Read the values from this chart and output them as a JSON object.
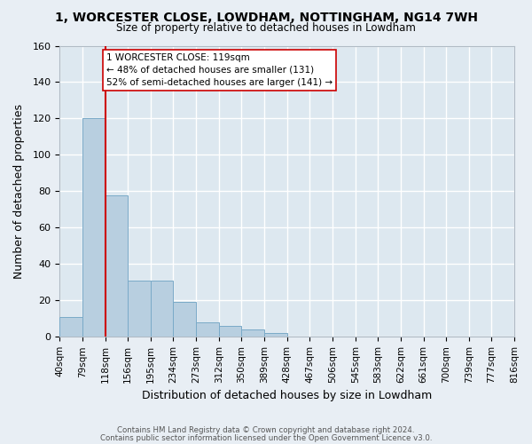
{
  "title": "1, WORCESTER CLOSE, LOWDHAM, NOTTINGHAM, NG14 7WH",
  "subtitle": "Size of property relative to detached houses in Lowdham",
  "xlabel": "Distribution of detached houses by size in Lowdham",
  "ylabel": "Number of detached properties",
  "bar_values": [
    11,
    120,
    78,
    31,
    31,
    19,
    8,
    6,
    4,
    2,
    0,
    0,
    0,
    0,
    0,
    0,
    0,
    0,
    0,
    0
  ],
  "bin_labels": [
    "40sqm",
    "79sqm",
    "118sqm",
    "156sqm",
    "195sqm",
    "234sqm",
    "273sqm",
    "312sqm",
    "350sqm",
    "389sqm",
    "428sqm",
    "467sqm",
    "506sqm",
    "545sqm",
    "583sqm",
    "622sqm",
    "661sqm",
    "700sqm",
    "739sqm",
    "777sqm",
    "816sqm"
  ],
  "bin_edges": [
    40,
    79,
    118,
    156,
    195,
    234,
    273,
    312,
    350,
    389,
    428,
    467,
    506,
    545,
    583,
    622,
    661,
    700,
    739,
    777,
    816
  ],
  "bar_color": "#b8cfe0",
  "bar_edge_color": "#7aaac8",
  "highlight_bin_idx": 2,
  "highlight_line_color": "#cc0000",
  "annotation_line1": "1 WORCESTER CLOSE: 119sqm",
  "annotation_line2": "← 48% of detached houses are smaller (131)",
  "annotation_line3": "52% of semi-detached houses are larger (141) →",
  "annotation_box_color": "#ffffff",
  "annotation_box_edge_color": "#cc0000",
  "ylim": [
    0,
    160
  ],
  "yticks": [
    0,
    20,
    40,
    60,
    80,
    100,
    120,
    140,
    160
  ],
  "bg_color": "#e8eef4",
  "plot_bg_color": "#dde8f0",
  "grid_color": "#ffffff",
  "footer_line1": "Contains HM Land Registry data © Crown copyright and database right 2024.",
  "footer_line2": "Contains public sector information licensed under the Open Government Licence v3.0."
}
